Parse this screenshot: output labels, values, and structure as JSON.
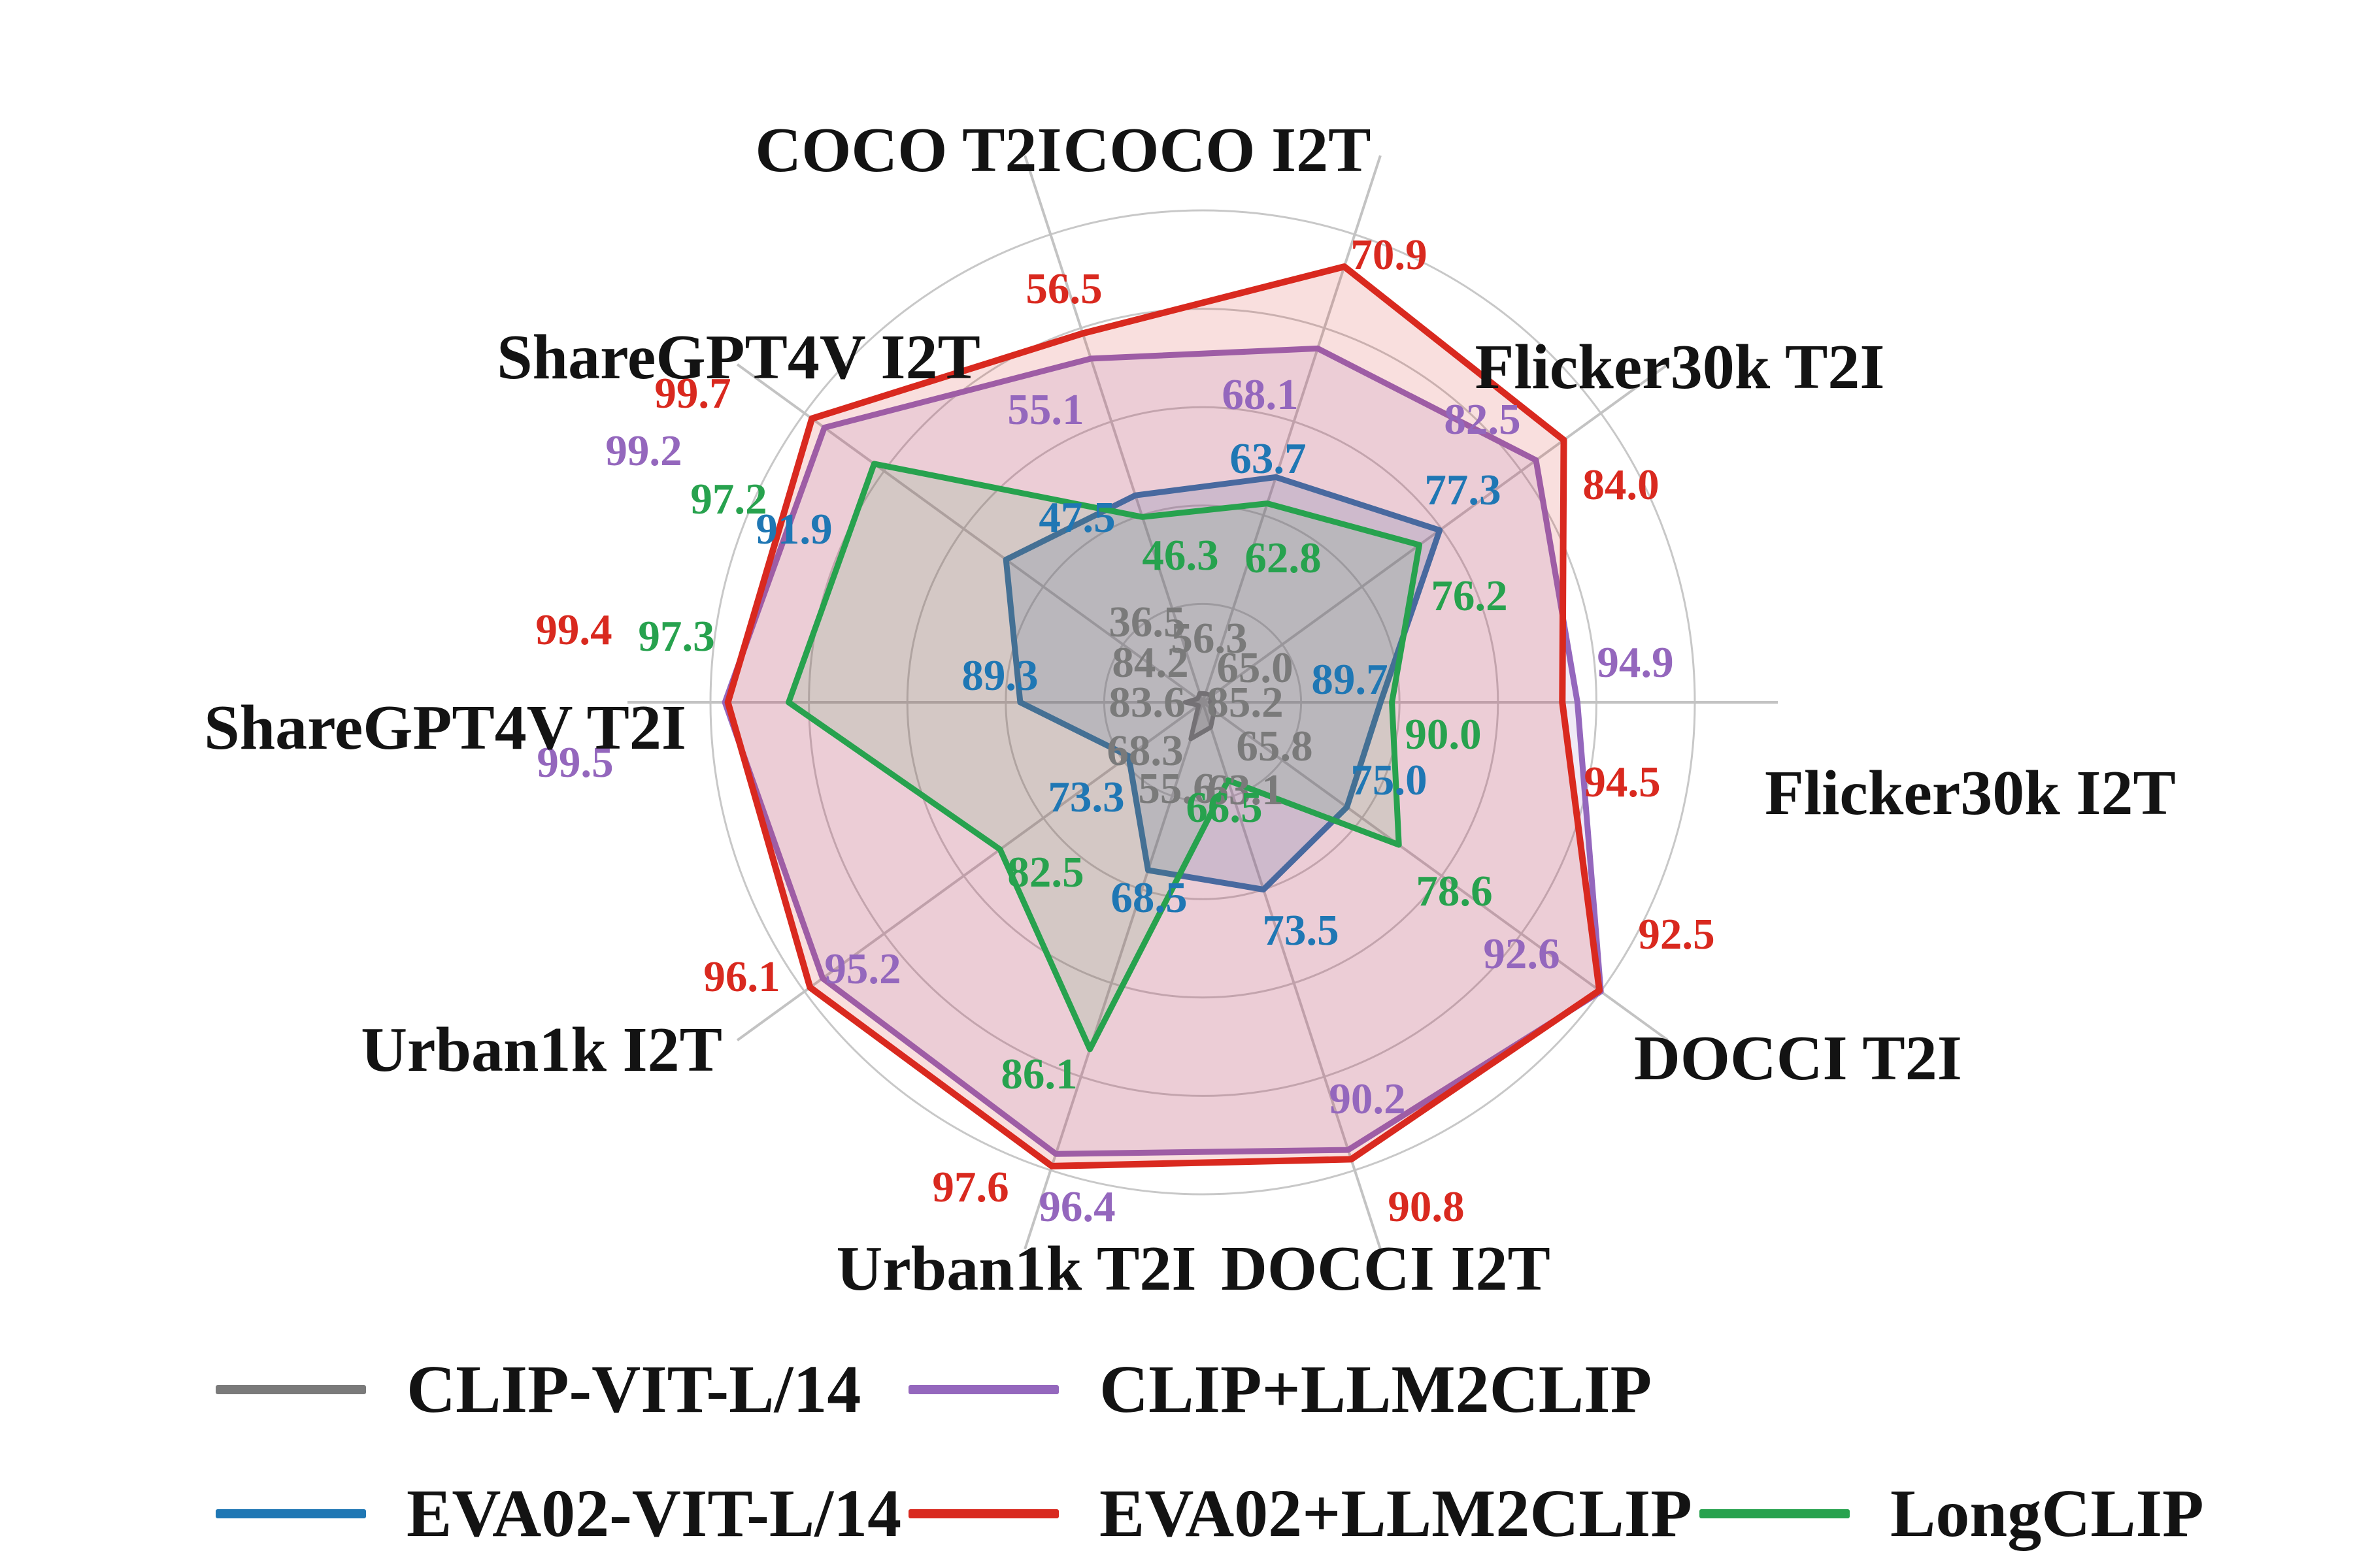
{
  "chart_data": {
    "type": "radar",
    "title": "",
    "categories": [
      "COCO T2I",
      "COCO I2T",
      "Flicker30k T2I",
      "Flicker30k I2T",
      "DOCCI T2I",
      "DOCCI I2T",
      "Urban1k T2I",
      "Urban1k I2T",
      "ShareGPT4V T2I",
      "ShareGPT4V I2T"
    ],
    "series": [
      {
        "name": "CLIP-VIT-L/14",
        "color": "#7a7a7a",
        "values": [
          36.5,
          56.3,
          65.0,
          85.2,
          65.8,
          63.1,
          55.6,
          68.3,
          83.6,
          84.2
        ]
      },
      {
        "name": "EVA02-VIT-L/14",
        "color": "#1f77b4",
        "values": [
          47.5,
          63.7,
          77.3,
          89.7,
          75.0,
          73.5,
          68.5,
          73.3,
          89.3,
          91.9
        ]
      },
      {
        "name": "CLIP+LLM2CLIP",
        "color": "#9467bd",
        "values": [
          55.1,
          68.1,
          82.5,
          94.9,
          92.6,
          90.2,
          96.4,
          95.2,
          99.5,
          99.2
        ]
      },
      {
        "name": "EVA02+LLM2CLIP",
        "color": "#d9291f",
        "values": [
          56.5,
          70.9,
          84.0,
          94.5,
          92.5,
          90.8,
          97.6,
          96.1,
          99.4,
          99.7
        ]
      },
      {
        "name": "LongCLIP",
        "color": "#27a24e",
        "values": [
          46.3,
          62.8,
          76.2,
          90.0,
          78.6,
          66.5,
          86.1,
          82.5,
          97.3,
          97.2
        ]
      }
    ],
    "axis_ranges": [
      [
        36,
        62
      ],
      [
        56,
        72
      ],
      [
        64.5,
        86
      ],
      [
        85,
        98
      ],
      [
        65,
        92.6
      ],
      [
        61.5,
        91.5
      ],
      [
        52,
        98
      ],
      [
        68,
        96.5
      ],
      [
        83,
        100
      ],
      [
        84,
        100
      ]
    ],
    "grid": true,
    "grid_rings": 5,
    "legend_position": "bottom"
  }
}
